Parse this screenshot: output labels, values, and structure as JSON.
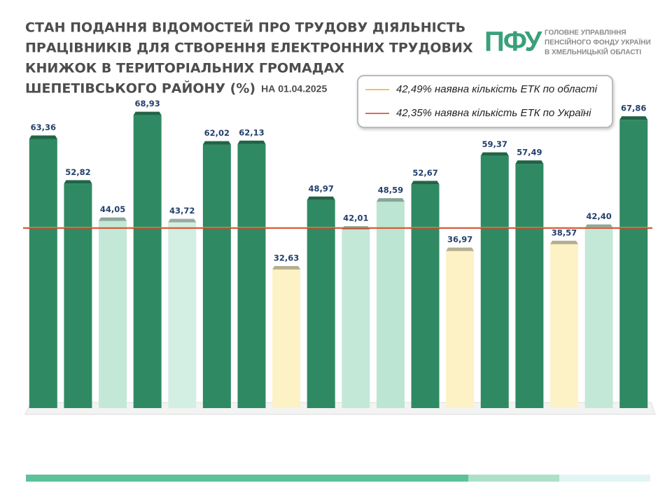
{
  "chart_data": {
    "type": "bar",
    "title": [
      "СТАН ПОДАННЯ ВІДОМОСТЕЙ ПРО ТРУДОВУ ДІЯЛЬНІСТЬ",
      "ПРАЦІВНИКІВ ДЛЯ СТВОРЕННЯ ЕЛЕКТРОННИХ ТРУДОВИХ",
      "КНИЖОК В ТЕРИТОРІАЛЬНИХ ГРОМАДАХ",
      "ШЕПЕТІВСЬКОГО РАЙОНУ (%)"
    ],
    "subtitle": "НА 01.04.2025",
    "logo": {
      "mark": "ПФУ",
      "text": [
        "ГОЛОВНЕ УПРАВЛІННЯ",
        "ПЕНСІЙНОГО ФОНДУ УКРАЇНИ",
        "В ХМЕЛЬНИЦЬКІЙ ОБЛАСТІ"
      ]
    },
    "categories": [
      null,
      null,
      null,
      null,
      null,
      null,
      null,
      null,
      null,
      null,
      null,
      null,
      null,
      null,
      null,
      null,
      null,
      null
    ],
    "values": [
      63.36,
      52.82,
      44.05,
      68.93,
      43.72,
      62.02,
      62.13,
      32.63,
      48.97,
      42.01,
      48.59,
      52.67,
      36.97,
      59.37,
      57.49,
      38.57,
      42.4,
      67.86
    ],
    "value_labels": [
      "63,36",
      "52,82",
      "44,05",
      "68,93",
      "43,72",
      "62,02",
      "62,13",
      "32,63",
      "48,97",
      "42,01",
      "48,59",
      "52,67",
      "36,97",
      "59,37",
      "57,49",
      "38,57",
      "42,40",
      "67,86"
    ],
    "colors": [
      "#2f8a63",
      "#2f8a63",
      "#c4e8d8",
      "#2f8a63",
      "#d3eee2",
      "#2f8a63",
      "#2f8a63",
      "#fdf1c6",
      "#2f8a63",
      "#c4e8d8",
      "#bde5d3",
      "#2f8a63",
      "#fdf1c6",
      "#2f8a63",
      "#2f8a63",
      "#fdf1c6",
      "#c4e8d8",
      "#2f8a63"
    ],
    "reference_lines": [
      {
        "value": 42.49,
        "label": "42,49% наявна кількість ЕТК по області",
        "color": "#e3b237"
      },
      {
        "value": 42.35,
        "label": "42,35% наявна кількість ЕТК по Україні",
        "color": "#d13a2a"
      }
    ],
    "ylim": [
      0,
      72
    ]
  }
}
